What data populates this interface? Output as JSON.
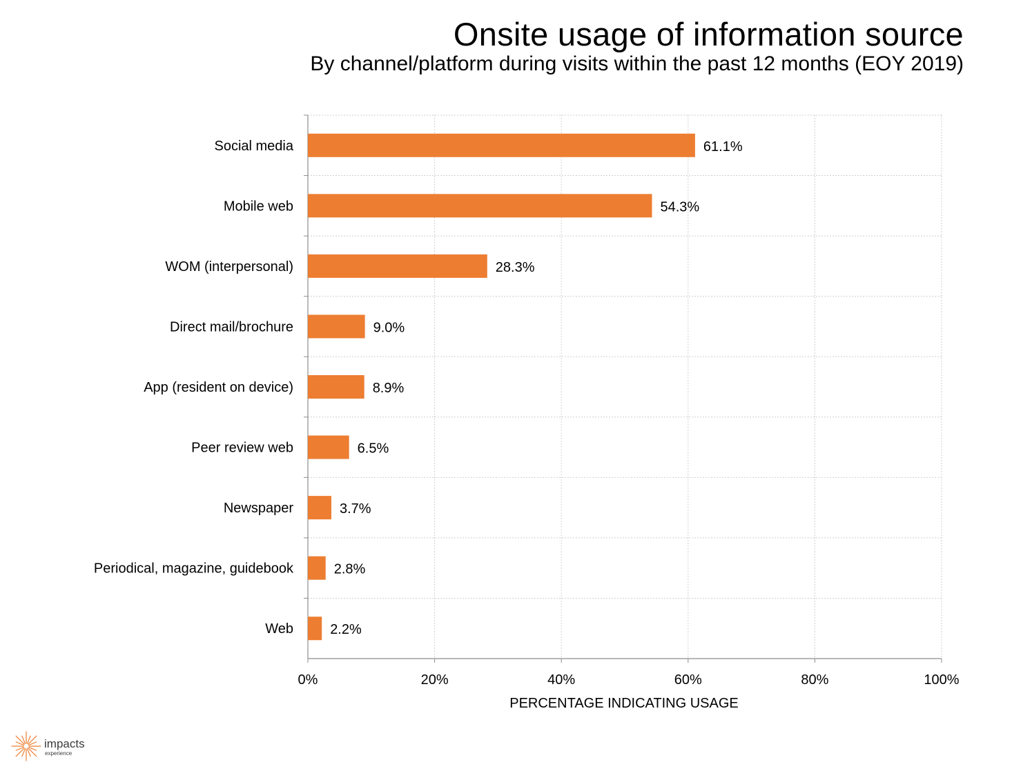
{
  "chart_data": {
    "type": "bar",
    "orientation": "horizontal",
    "title": "Onsite usage of information source",
    "subtitle": "By channel/platform during visits within the past 12 months (EOY 2019)",
    "xlabel": "PERCENTAGE INDICATING USAGE",
    "ylabel": "",
    "xlim": [
      0,
      100
    ],
    "x_ticks": [
      "0%",
      "20%",
      "40%",
      "60%",
      "80%",
      "100%"
    ],
    "categories": [
      "Social media",
      "Mobile web",
      "WOM (interpersonal)",
      "Direct mail/brochure",
      "App (resident on device)",
      "Peer review web",
      "Newspaper",
      "Periodical, magazine, guidebook",
      "Web"
    ],
    "values": [
      61.1,
      54.3,
      28.3,
      9.0,
      8.9,
      6.5,
      3.7,
      2.8,
      2.2
    ],
    "data_labels": [
      "61.1%",
      "54.3%",
      "28.3%",
      "9.0%",
      "8.9%",
      "6.5%",
      "3.7%",
      "2.8%",
      "2.2%"
    ],
    "grid": true,
    "bar_color": "#ED7D31"
  },
  "logo": {
    "name": "impacts",
    "sub": "experience",
    "color": "#ED7D31"
  }
}
